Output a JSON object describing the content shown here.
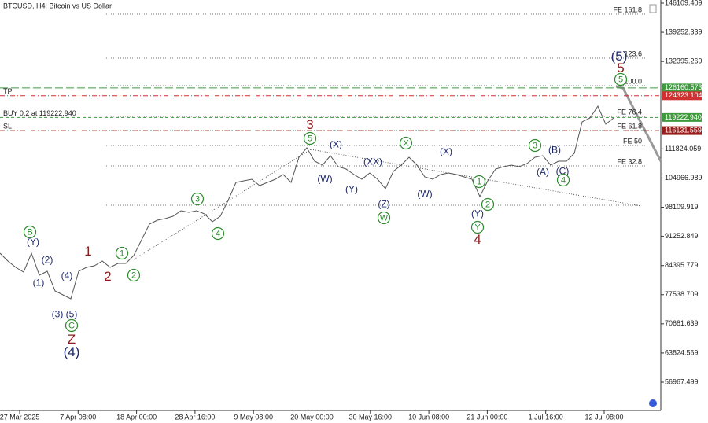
{
  "chart_data": {
    "type": "line",
    "title": "BTCUSD, H4:  Bitcoin vs US Dollar",
    "color": "#555555",
    "ylim": [
      50310,
      146849
    ],
    "yticks": [
      146109.409,
      139252.339,
      132395.269,
      111824.059,
      104966.989,
      98109.919,
      91252.849,
      84395.779,
      77538.709,
      70681.639,
      63824.569,
      56967.499
    ],
    "xtick_labels": [
      "27 Mar 2025",
      "7 Apr 08:00",
      "18 Apr 00:00",
      "28 Apr 16:00",
      "9 May 08:00",
      "20 May 00:00",
      "30 May 16:00",
      "10 Jun 08:00",
      "21 Jun 00:00",
      "1 Jul 16:00",
      "12 Jul 08:00"
    ],
    "values": [
      87300,
      85450,
      83970,
      82860,
      87300,
      82120,
      83050,
      78420,
      77500,
      76570,
      83050,
      83970,
      84340,
      85450,
      83970,
      84890,
      84890,
      86740,
      90440,
      94140,
      95070,
      95440,
      95990,
      97290,
      96920,
      97290,
      96550,
      94700,
      95990,
      99690,
      103940,
      104310,
      104680,
      103200,
      103940,
      104680,
      105790,
      103940,
      109860,
      112080,
      108940,
      108010,
      110230,
      107640,
      107090,
      105790,
      104680,
      106160,
      104680,
      102460,
      106530,
      108010,
      109860,
      108010,
      105240,
      104680,
      105790,
      106160,
      105790,
      105240,
      104680,
      100610,
      104310,
      107090,
      107640,
      108010,
      107640,
      108380,
      109860,
      110230,
      108010,
      108940,
      108940,
      110790,
      118180,
      119110,
      121880,
      117630,
      119110
    ],
    "levels": [
      {
        "value": 126160.573,
        "tag": "126160.573",
        "color": "#3c9a3c",
        "style": "long-dash"
      },
      {
        "name": "TP",
        "value": 124323.104,
        "tag": "124323.104",
        "color": "#d03030",
        "style": "dash-dot"
      },
      {
        "name": "BUY 0.2 at 119222.940",
        "value": 119222.94,
        "tag": "119222.940",
        "color": "#3c9a3c",
        "style": "dash"
      },
      {
        "name": "SL",
        "value": 116131.559,
        "tag": "116131.559",
        "color": "#9a1c1c",
        "style": "dash-dot"
      }
    ],
    "fib_levels": [
      {
        "label": "FE 161.8",
        "value": 143520
      },
      {
        "label": "123.6",
        "value": 133160
      },
      {
        "label": "100.0",
        "value": 126690
      },
      {
        "label": "FE 76.4",
        "value": 119480
      },
      {
        "label": "FE 61.8",
        "value": 116150
      },
      {
        "label": "FE 50",
        "value": 112640
      },
      {
        "label": "FE 32.8",
        "value": 107830
      },
      {
        "value": 98580
      }
    ],
    "annotations": [
      {
        "text": "(5)",
        "color": "#1f2a6b",
        "size": "large"
      },
      {
        "text": "5",
        "color": "#8b1a1a"
      },
      {
        "text": "5",
        "color": "#2e8b2e",
        "circled": true
      },
      {
        "text": "3",
        "color": "#8b1a1a"
      },
      {
        "text": "5",
        "color": "#2e8b2e",
        "circled": true
      },
      {
        "text": "(X)",
        "color": "#1f2a6b"
      },
      {
        "text": "X",
        "color": "#2e8b2e",
        "circled": true
      },
      {
        "text": "(X)",
        "color": "#1f2a6b"
      },
      {
        "text": "3",
        "color": "#2e8b2e",
        "circled": true
      },
      {
        "text": "(B)",
        "color": "#1f2a6b"
      },
      {
        "text": "(XX)",
        "color": "#1f2a6b"
      },
      {
        "text": "(W)",
        "color": "#1f2a6b"
      },
      {
        "text": "(Y)",
        "color": "#1f2a6b"
      },
      {
        "text": "(A)",
        "color": "#1f2a6b"
      },
      {
        "text": "(C)",
        "color": "#1f2a6b"
      },
      {
        "text": "4",
        "color": "#2e8b2e",
        "circled": true
      },
      {
        "text": "1",
        "color": "#2e8b2e",
        "circled": true
      },
      {
        "text": "(W)",
        "color": "#1f2a6b"
      },
      {
        "text": "(Z)",
        "color": "#1f2a6b"
      },
      {
        "text": "2",
        "color": "#2e8b2e",
        "circled": true
      },
      {
        "text": "W",
        "color": "#2e8b2e",
        "circled": true
      },
      {
        "text": "(Y)",
        "color": "#1f2a6b"
      },
      {
        "text": "Y",
        "color": "#2e8b2e",
        "circled": true
      },
      {
        "text": "4",
        "color": "#8b1a1a"
      },
      {
        "text": "3",
        "color": "#2e8b2e",
        "circled": true
      },
      {
        "text": "4",
        "color": "#2e8b2e",
        "circled": true
      },
      {
        "text": "B",
        "color": "#2e8b2e",
        "circled": true
      },
      {
        "text": "(Y)",
        "color": "#1f2a6b"
      },
      {
        "text": "1",
        "color": "#8b1a1a"
      },
      {
        "text": "1",
        "color": "#2e8b2e",
        "circled": true
      },
      {
        "text": "(2)",
        "color": "#1f2a6b"
      },
      {
        "text": "2",
        "color": "#8b1a1a"
      },
      {
        "text": "2",
        "color": "#2e8b2e",
        "circled": true
      },
      {
        "text": "(4)",
        "color": "#1f2a6b"
      },
      {
        "text": "(1)",
        "color": "#1f2a6b"
      },
      {
        "text": "(3)",
        "color": "#1f2a6b"
      },
      {
        "text": "(5)",
        "color": "#1f2a6b"
      },
      {
        "text": "C",
        "color": "#2e8b2e",
        "circled": true
      },
      {
        "text": "Z",
        "color": "#8b1a1a"
      },
      {
        "text": "(4)",
        "color": "#1f2a6b",
        "size": "large"
      }
    ]
  }
}
